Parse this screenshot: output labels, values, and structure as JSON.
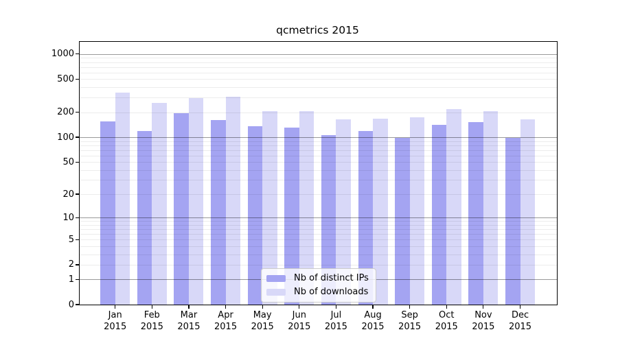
{
  "title": "qcmetrics 2015",
  "chart_data": {
    "type": "bar",
    "title": "qcmetrics 2015",
    "categories": [
      "Jan 2015",
      "Feb 2015",
      "Mar 2015",
      "Apr 2015",
      "May 2015",
      "Jun 2015",
      "Jul 2015",
      "Aug 2015",
      "Sep 2015",
      "Oct 2015",
      "Nov 2015",
      "Dec 2015"
    ],
    "series": [
      {
        "name": "Nb of distinct IPs",
        "color": "#a4a4f2",
        "values": [
          155,
          118,
          195,
          160,
          135,
          131,
          105,
          118,
          98,
          140,
          152,
          99
        ]
      },
      {
        "name": "Nb of downloads",
        "color": "#d8d8f8",
        "values": [
          344,
          260,
          296,
          310,
          205,
          208,
          164,
          167,
          173,
          218,
          205,
          165
        ]
      }
    ],
    "y_scale": "log1p",
    "y_ticks": [
      0,
      1,
      2,
      5,
      10,
      20,
      50,
      100,
      200,
      500,
      1000
    ],
    "y_minor_ticks": [
      3,
      4,
      6,
      7,
      8,
      9,
      30,
      40,
      60,
      70,
      80,
      90,
      300,
      400,
      600,
      700,
      800,
      900
    ],
    "ylim": [
      0,
      1400
    ],
    "grid": true,
    "legend_position": "lower center",
    "colors": {
      "axis": "#000000",
      "grid_major": "#9a9a9a",
      "grid_minor": "#ebebeb",
      "background": "#ffffff"
    }
  }
}
